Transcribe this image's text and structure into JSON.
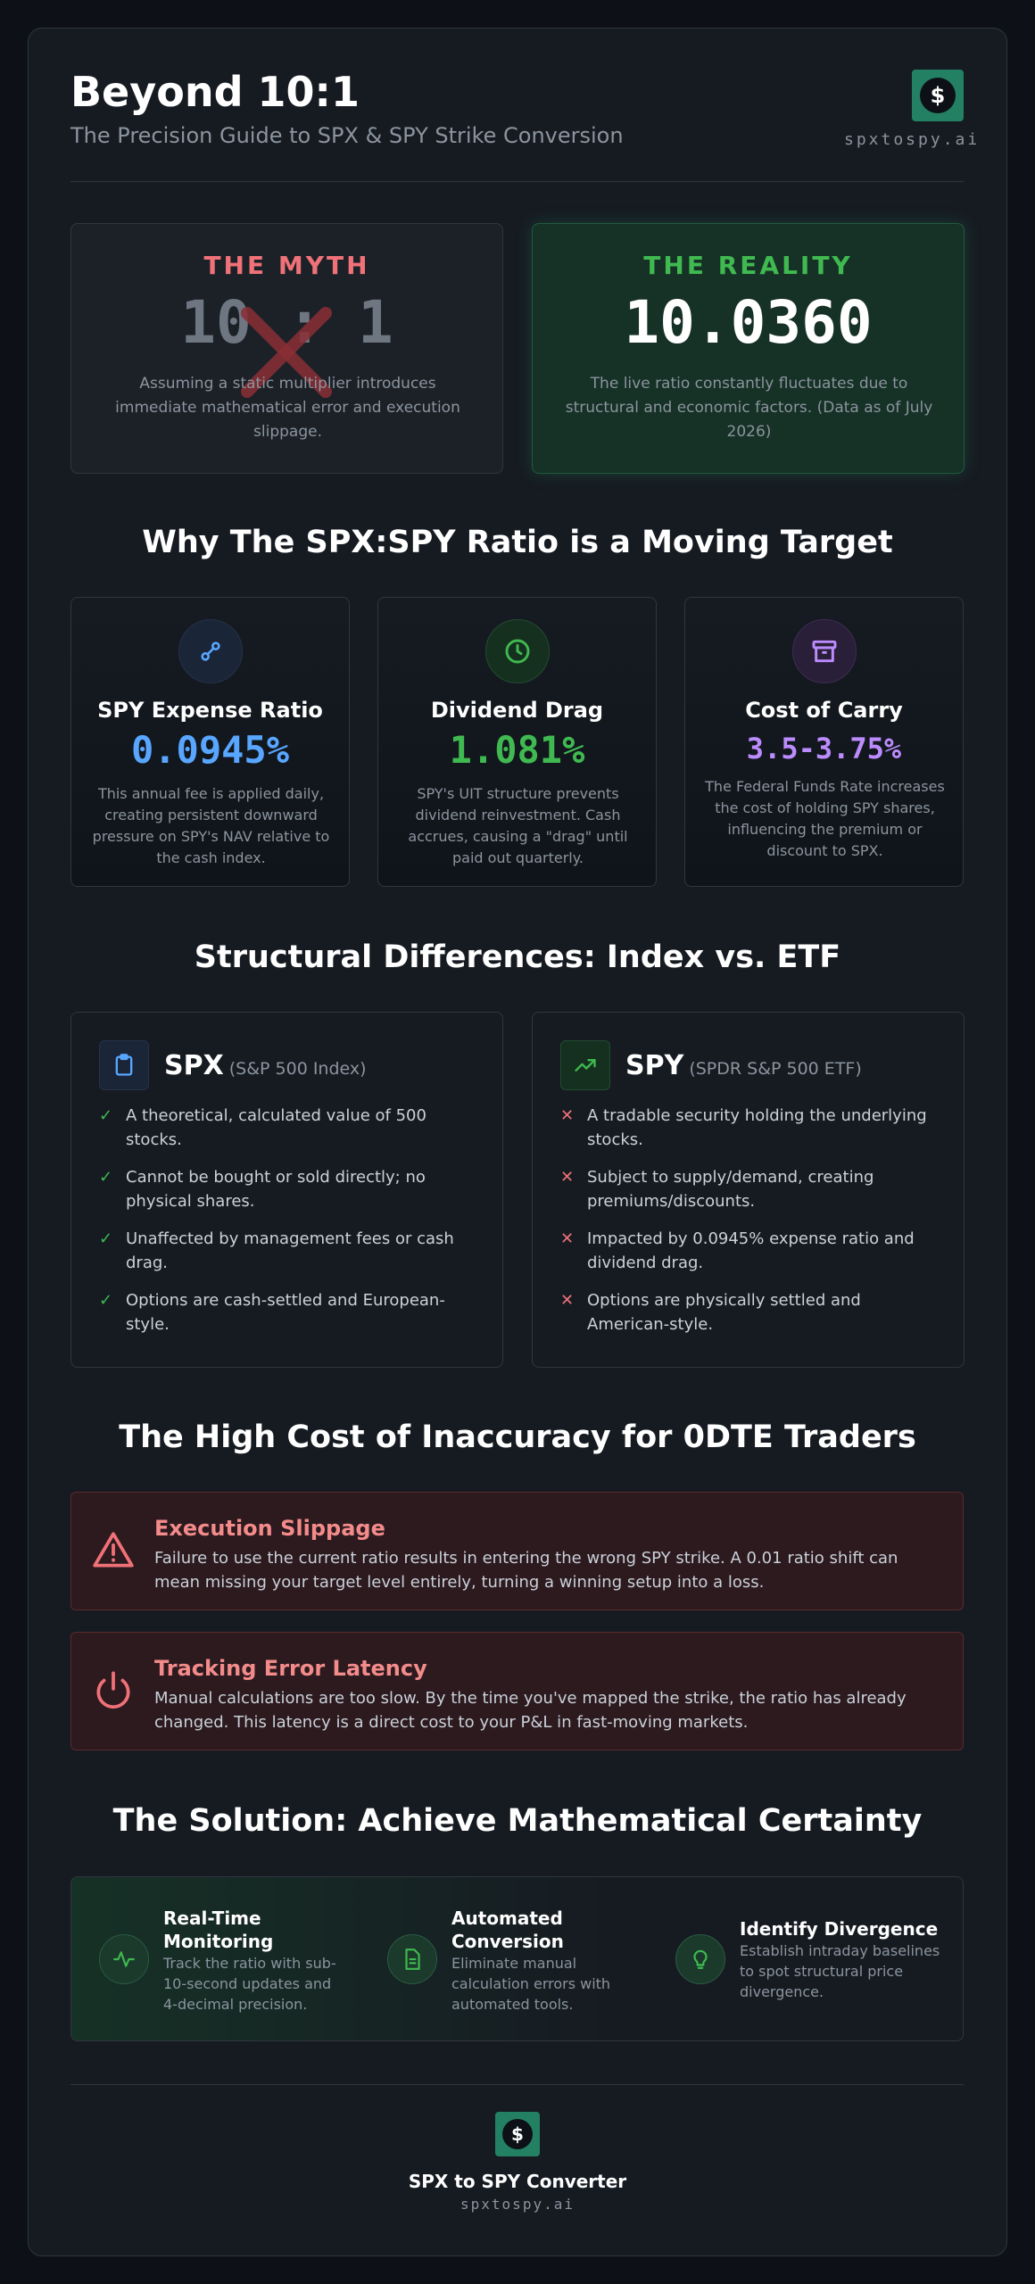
{
  "header": {
    "title": "Beyond 10:1",
    "subtitle": "The Precision Guide to SPX & SPY Strike Conversion",
    "logo_glyph": "$",
    "domain": "spxtospy.ai"
  },
  "myth": {
    "heading": "THE MYTH",
    "value": "10 : 1",
    "description": "Assuming a static multiplier introduces immediate mathematical error and execution slippage."
  },
  "reality": {
    "heading": "THE REALITY",
    "value": "10.0360",
    "description": "The live ratio constantly fluctuates due to structural and economic factors. (Data as of July 2026)"
  },
  "moving_target": {
    "heading": "Why The SPX:SPY Ratio is a Moving Target",
    "factors": [
      {
        "name": "SPY Expense Ratio",
        "value": "0.0945%",
        "description": "This annual fee is applied daily, creating persistent downward pressure on SPY's NAV relative to the cash index.",
        "icon": "link-icon",
        "color": "#58a6ff"
      },
      {
        "name": "Dividend Drag",
        "value": "1.081%",
        "description": "SPY's UIT structure prevents dividend reinvestment. Cash accrues, causing a \"drag\" until paid out quarterly.",
        "icon": "clock-icon",
        "color": "#3fb950"
      },
      {
        "name": "Cost of Carry",
        "value": "3.5-3.75%",
        "description": "The Federal Funds Rate increases the cost of holding SPY shares, influencing the premium or discount to SPX.",
        "icon": "archive-icon",
        "color": "#bc8cff"
      }
    ]
  },
  "structural": {
    "heading": "Structural Differences: Index vs. ETF",
    "spx": {
      "name": "SPX",
      "subname": "(S&P 500 Index)",
      "items": [
        "A theoretical, calculated value of 500 stocks.",
        "Cannot be bought or sold directly; no physical shares.",
        "Unaffected by management fees or cash drag.",
        "Options are cash-settled and European-style."
      ]
    },
    "spy": {
      "name": "SPY",
      "subname": "(SPDR S&P 500 ETF)",
      "items": [
        "A tradable security holding the underlying stocks.",
        "Subject to supply/demand, creating premiums/discounts.",
        "Impacted by 0.0945% expense ratio and dividend drag.",
        "Options are physically settled and American-style."
      ]
    }
  },
  "cost": {
    "heading": "The High Cost of Inaccuracy for 0DTE Traders",
    "alerts": [
      {
        "title": "Execution Slippage",
        "text": "Failure to use the current ratio results in entering the wrong SPY strike. A 0.01 ratio shift can mean missing your target level entirely, turning a winning setup into a loss."
      },
      {
        "title": "Tracking Error Latency",
        "text": "Manual calculations are too slow. By the time you've mapped the strike, the ratio has already changed. This latency is a direct cost to your P&L in fast-moving markets."
      }
    ]
  },
  "solution": {
    "heading": "The Solution: Achieve Mathematical Certainty",
    "items": [
      {
        "title": "Real-Time Monitoring",
        "text": "Track the ratio with sub-10-second updates and 4-decimal precision."
      },
      {
        "title": "Automated Conversion",
        "text": "Eliminate manual calculation errors with automated tools."
      },
      {
        "title": "Identify Divergence",
        "text": "Establish intraday baselines to spot structural price divergence."
      }
    ]
  },
  "footer": {
    "title": "SPX to SPY Converter",
    "domain": "spxtospy.ai"
  },
  "colors": {
    "myth": "#f07178",
    "reality": "#3fb950",
    "blue": "#58a6ff",
    "purple": "#bc8cff",
    "danger": "#f38b8b"
  }
}
